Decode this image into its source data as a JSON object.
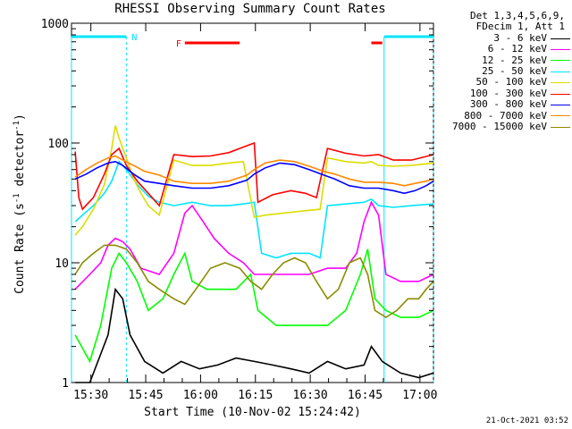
{
  "chart_data": {
    "type": "line",
    "title": "RHESSI Observing Summary Count Rates",
    "xlabel": "Start Time (10-Nov-02 15:24:42)",
    "ylabel": "Count Rate (s",
    "ylabel_sup1": "-1",
    "ylabel_mid": " detector",
    "ylabel_sup2": "-1",
    "ylabel_end": ")",
    "yscale": "log",
    "ylim": [
      1,
      1000
    ],
    "y_ticks": [
      {
        "value": 1,
        "label": "1"
      },
      {
        "value": 10,
        "label": "10"
      },
      {
        "value": 100,
        "label": "100"
      },
      {
        "value": 1000,
        "label": "1000"
      }
    ],
    "xlim_minutes": [
      0,
      99
    ],
    "x_ticks": [
      {
        "minute": 5.3,
        "label": "15:30"
      },
      {
        "minute": 20.3,
        "label": "15:45"
      },
      {
        "minute": 35.3,
        "label": "16:00"
      },
      {
        "minute": 50.3,
        "label": "16:15"
      },
      {
        "minute": 65.3,
        "label": "16:30"
      },
      {
        "minute": 80.3,
        "label": "16:45"
      },
      {
        "minute": 95.3,
        "label": "17:00"
      }
    ],
    "markers": [
      {
        "label": "N",
        "start": 0,
        "end": 15,
        "color": "#00e5ff"
      },
      {
        "label": "F",
        "start": 31,
        "end": 46,
        "color": "#ff0000"
      },
      {
        "label": "",
        "start": 82,
        "end": 85,
        "color": "#ff0000"
      },
      {
        "label": "",
        "start": 85.5,
        "end": 99,
        "color": "#00e5ff"
      }
    ],
    "legend_header": [
      "Det 1,3,4,5,6,9,",
      "FDecim 1, Att 1"
    ],
    "series": [
      {
        "name": "3 - 6 keV",
        "color": "#000000",
        "values": [
          [
            1,
            1.0
          ],
          [
            5,
            1.0
          ],
          [
            10,
            2.5
          ],
          [
            12,
            6.0
          ],
          [
            14,
            5.0
          ],
          [
            16,
            2.5
          ],
          [
            20,
            1.5
          ],
          [
            25,
            1.2
          ],
          [
            30,
            1.5
          ],
          [
            35,
            1.3
          ],
          [
            40,
            1.4
          ],
          [
            45,
            1.6
          ],
          [
            50,
            1.5
          ],
          [
            55,
            1.4
          ],
          [
            60,
            1.3
          ],
          [
            65,
            1.2
          ],
          [
            70,
            1.5
          ],
          [
            75,
            1.3
          ],
          [
            80,
            1.4
          ],
          [
            82,
            2.0
          ],
          [
            85,
            1.5
          ],
          [
            90,
            1.2
          ],
          [
            95,
            1.1
          ],
          [
            99,
            1.2
          ]
        ]
      },
      {
        "name": "6 - 12 keV",
        "color": "#ff00ff",
        "values": [
          [
            1,
            6
          ],
          [
            5,
            8
          ],
          [
            8,
            10
          ],
          [
            10,
            14
          ],
          [
            12,
            16
          ],
          [
            14,
            15
          ],
          [
            16,
            13
          ],
          [
            19,
            9
          ],
          [
            24,
            8
          ],
          [
            28,
            12
          ],
          [
            31,
            26
          ],
          [
            33,
            30
          ],
          [
            36,
            22
          ],
          [
            39,
            16
          ],
          [
            43,
            12
          ],
          [
            47,
            10
          ],
          [
            50,
            8
          ],
          [
            55,
            8
          ],
          [
            60,
            8
          ],
          [
            65,
            8
          ],
          [
            70,
            9
          ],
          [
            75,
            9
          ],
          [
            78,
            12
          ],
          [
            80,
            22
          ],
          [
            82,
            32
          ],
          [
            84,
            25
          ],
          [
            86,
            8
          ],
          [
            90,
            7
          ],
          [
            95,
            7
          ],
          [
            99,
            8
          ]
        ]
      },
      {
        "name": "12 - 25 keV",
        "color": "#00ff00",
        "values": [
          [
            1,
            2.5
          ],
          [
            5,
            1.5
          ],
          [
            8,
            3.0
          ],
          [
            11,
            9
          ],
          [
            13,
            12
          ],
          [
            15,
            10
          ],
          [
            18,
            7
          ],
          [
            21,
            4
          ],
          [
            25,
            5
          ],
          [
            28,
            8
          ],
          [
            31,
            12
          ],
          [
            33,
            7
          ],
          [
            37,
            6
          ],
          [
            41,
            6
          ],
          [
            45,
            6
          ],
          [
            49,
            8
          ],
          [
            51,
            4
          ],
          [
            56,
            3
          ],
          [
            60,
            3
          ],
          [
            65,
            3
          ],
          [
            70,
            3
          ],
          [
            75,
            4
          ],
          [
            79,
            8
          ],
          [
            81,
            13
          ],
          [
            83,
            5
          ],
          [
            86,
            4
          ],
          [
            90,
            3.5
          ],
          [
            95,
            3.5
          ],
          [
            99,
            4
          ]
        ]
      },
      {
        "name": "25 - 50 keV",
        "color": "#00e5ff",
        "values": [
          [
            1,
            22
          ],
          [
            3,
            25
          ],
          [
            6,
            30
          ],
          [
            9,
            38
          ],
          [
            11,
            48
          ],
          [
            13,
            70
          ],
          [
            15,
            60
          ],
          [
            18,
            45
          ],
          [
            21,
            36
          ],
          [
            24,
            32
          ],
          [
            28,
            30
          ],
          [
            33,
            32
          ],
          [
            38,
            30
          ],
          [
            43,
            30
          ],
          [
            47,
            31
          ],
          [
            50,
            32
          ],
          [
            52,
            12
          ],
          [
            56,
            11
          ],
          [
            60,
            12
          ],
          [
            65,
            12
          ],
          [
            68,
            11
          ],
          [
            70,
            30
          ],
          [
            75,
            31
          ],
          [
            80,
            32
          ],
          [
            82,
            34
          ],
          [
            84,
            30
          ],
          [
            88,
            29
          ],
          [
            93,
            30
          ],
          [
            99,
            31
          ]
        ]
      },
      {
        "name": "50 - 100 keV",
        "color": "#dddd00",
        "values": [
          [
            1,
            17
          ],
          [
            3,
            20
          ],
          [
            6,
            28
          ],
          [
            9,
            45
          ],
          [
            11,
            90
          ],
          [
            12,
            140
          ],
          [
            13,
            110
          ],
          [
            15,
            75
          ],
          [
            17,
            50
          ],
          [
            19,
            38
          ],
          [
            21,
            30
          ],
          [
            24,
            25
          ],
          [
            28,
            72
          ],
          [
            33,
            65
          ],
          [
            38,
            65
          ],
          [
            43,
            68
          ],
          [
            47,
            70
          ],
          [
            50,
            24
          ],
          [
            53,
            25
          ],
          [
            58,
            26
          ],
          [
            63,
            27
          ],
          [
            68,
            28
          ],
          [
            70,
            75
          ],
          [
            75,
            70
          ],
          [
            80,
            68
          ],
          [
            82,
            70
          ],
          [
            84,
            65
          ],
          [
            88,
            64
          ],
          [
            93,
            65
          ],
          [
            99,
            68
          ]
        ]
      },
      {
        "name": "100 - 300 keV",
        "color": "#ff0000",
        "values": [
          [
            1,
            85
          ],
          [
            2,
            35
          ],
          [
            3,
            28
          ],
          [
            6,
            35
          ],
          [
            9,
            55
          ],
          [
            11,
            80
          ],
          [
            13,
            90
          ],
          [
            15,
            65
          ],
          [
            18,
            48
          ],
          [
            21,
            38
          ],
          [
            24,
            30
          ],
          [
            28,
            80
          ],
          [
            33,
            77
          ],
          [
            38,
            78
          ],
          [
            43,
            83
          ],
          [
            48,
            95
          ],
          [
            50,
            100
          ],
          [
            51,
            32
          ],
          [
            55,
            37
          ],
          [
            60,
            40
          ],
          [
            64,
            38
          ],
          [
            67,
            35
          ],
          [
            70,
            90
          ],
          [
            75,
            82
          ],
          [
            80,
            78
          ],
          [
            84,
            80
          ],
          [
            88,
            72
          ],
          [
            93,
            72
          ],
          [
            99,
            80
          ]
        ]
      },
      {
        "name": "300 - 800 keV",
        "color": "#0000ff",
        "values": [
          [
            1,
            50
          ],
          [
            4,
            55
          ],
          [
            7,
            62
          ],
          [
            10,
            68
          ],
          [
            12,
            70
          ],
          [
            14,
            65
          ],
          [
            17,
            55
          ],
          [
            20,
            48
          ],
          [
            24,
            46
          ],
          [
            28,
            44
          ],
          [
            33,
            42
          ],
          [
            38,
            42
          ],
          [
            43,
            44
          ],
          [
            48,
            49
          ],
          [
            50,
            55
          ],
          [
            53,
            62
          ],
          [
            57,
            68
          ],
          [
            61,
            66
          ],
          [
            65,
            60
          ],
          [
            69,
            54
          ],
          [
            72,
            50
          ],
          [
            76,
            44
          ],
          [
            80,
            42
          ],
          [
            84,
            42
          ],
          [
            88,
            40
          ],
          [
            91,
            38
          ],
          [
            94,
            40
          ],
          [
            97,
            44
          ],
          [
            99,
            48
          ]
        ]
      },
      {
        "name": "800 - 7000 keV",
        "color": "#ff8800",
        "values": [
          [
            1,
            52
          ],
          [
            4,
            60
          ],
          [
            7,
            68
          ],
          [
            10,
            75
          ],
          [
            12,
            78
          ],
          [
            14,
            72
          ],
          [
            17,
            65
          ],
          [
            20,
            58
          ],
          [
            24,
            54
          ],
          [
            28,
            48
          ],
          [
            33,
            46
          ],
          [
            38,
            46
          ],
          [
            43,
            48
          ],
          [
            48,
            54
          ],
          [
            50,
            60
          ],
          [
            53,
            68
          ],
          [
            57,
            72
          ],
          [
            61,
            70
          ],
          [
            65,
            64
          ],
          [
            69,
            58
          ],
          [
            72,
            55
          ],
          [
            76,
            50
          ],
          [
            80,
            47
          ],
          [
            84,
            47
          ],
          [
            88,
            46
          ],
          [
            91,
            44
          ],
          [
            94,
            46
          ],
          [
            97,
            48
          ],
          [
            99,
            50
          ]
        ]
      },
      {
        "name": "7000 - 15000 keV",
        "color": "#8b8b00",
        "values": [
          [
            1,
            8
          ],
          [
            3,
            10
          ],
          [
            6,
            12
          ],
          [
            9,
            14
          ],
          [
            12,
            14
          ],
          [
            15,
            13
          ],
          [
            18,
            10
          ],
          [
            21,
            7
          ],
          [
            24,
            6
          ],
          [
            28,
            5
          ],
          [
            31,
            4.5
          ],
          [
            34,
            6
          ],
          [
            38,
            9
          ],
          [
            42,
            10
          ],
          [
            46,
            9
          ],
          [
            49,
            7
          ],
          [
            52,
            6
          ],
          [
            55,
            8
          ],
          [
            58,
            10
          ],
          [
            61,
            11
          ],
          [
            64,
            10
          ],
          [
            67,
            7
          ],
          [
            70,
            5
          ],
          [
            73,
            6
          ],
          [
            76,
            10
          ],
          [
            79,
            11
          ],
          [
            81,
            8
          ],
          [
            83,
            4
          ],
          [
            86,
            3.5
          ],
          [
            89,
            4
          ],
          [
            92,
            5
          ],
          [
            95,
            5
          ],
          [
            97,
            6
          ],
          [
            99,
            7
          ]
        ]
      }
    ]
  },
  "footer": {
    "timestamp": "21-Oct-2021 03:52"
  }
}
